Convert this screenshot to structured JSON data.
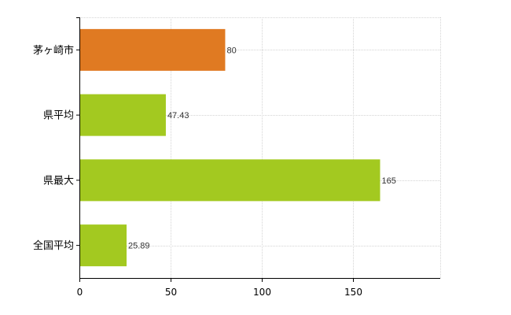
{
  "chart_data": {
    "type": "bar",
    "orientation": "horizontal",
    "categories": [
      "茅ヶ崎市",
      "県平均",
      "県最大",
      "全国平均"
    ],
    "values": [
      80,
      47.43,
      165,
      25.89
    ],
    "value_labels": [
      "80",
      "47.43",
      "165",
      "25.89"
    ],
    "bar_colors": [
      "#e07a22",
      "#a3c920",
      "#a3c920",
      "#a3c920"
    ],
    "xlim": [
      0,
      198
    ],
    "xticks": [
      0,
      50,
      100,
      150
    ],
    "grid": true,
    "title": "",
    "xlabel": "",
    "ylabel": ""
  }
}
